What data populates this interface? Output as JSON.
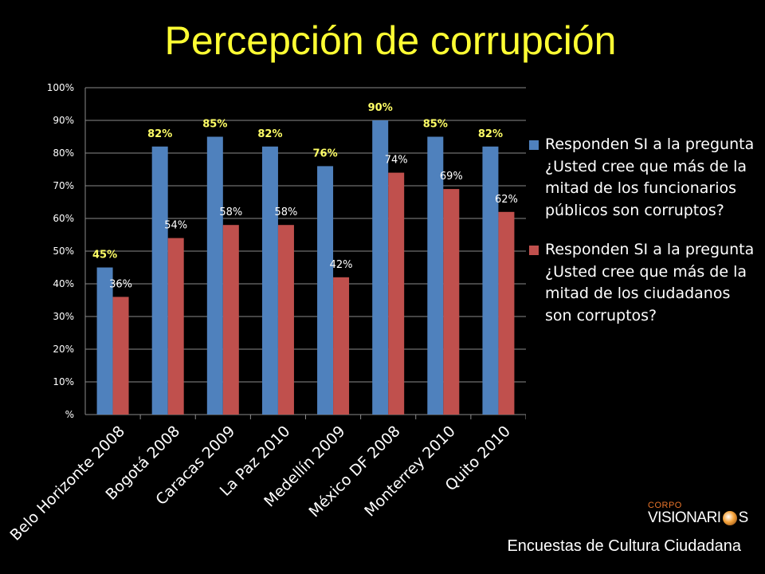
{
  "title": "Percepción de corrupción",
  "footer": "Encuestas de Cultura Ciudadana",
  "logo": {
    "top": "CORPO",
    "left": "VISIONARI",
    "right": "S"
  },
  "colors": {
    "series1": "#4f81bd",
    "series2": "#c0504d",
    "label1": "#ffff66",
    "label2": "#ffffff",
    "axis": "#ffffff"
  },
  "chart_data": {
    "type": "bar",
    "categories": [
      "Belo Horizonte 2008",
      "Bogotá 2008",
      "Caracas 2009",
      "La Paz 2010",
      "Medellín 2009",
      "México DF 2008",
      "Monterrey 2010",
      "Quito 2010"
    ],
    "series": [
      {
        "name": "Responden SI a la pregunta ¿Usted cree que más de la mitad de los funcionarios públicos son corruptos?",
        "values": [
          45,
          82,
          85,
          82,
          76,
          90,
          85,
          82
        ]
      },
      {
        "name": "Responden SI a la pregunta ¿Usted cree que más de la mitad de los ciudadanos son corruptos?",
        "values": [
          36,
          54,
          58,
          58,
          42,
          74,
          69,
          62
        ]
      }
    ],
    "ylim": [
      0,
      100
    ],
    "yticks": [
      "%",
      "10%",
      "20%",
      "30%",
      "40%",
      "50%",
      "60%",
      "70%",
      "80%",
      "90%",
      "100%"
    ],
    "data_label_suffix": "%",
    "grid": true,
    "legend_position": "right"
  }
}
